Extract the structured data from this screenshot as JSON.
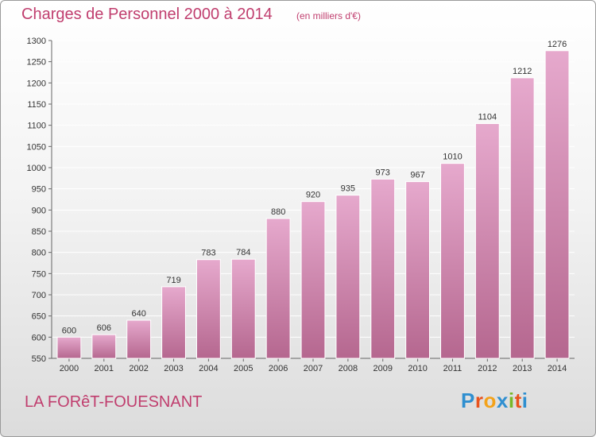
{
  "header": {
    "title": "Charges de Personnel 2000 à 2014",
    "subtitle": "(en milliers d'€)"
  },
  "footer": {
    "commune": "LA FORêT-FOUESNANT",
    "brand": "Proxiti",
    "brand_colors": [
      "#2f8fd0",
      "#e8531e",
      "#f3a21a",
      "#2f8fd0",
      "#78b828",
      "#e8531e",
      "#2f8fd0"
    ]
  },
  "colors": {
    "accent_text": "#c03e6e",
    "bar_top": "#e6a9cd",
    "bar_bottom": "#b5678f",
    "grid": "#ffffff"
  },
  "chart_data": {
    "type": "bar",
    "title": "Charges de Personnel 2000 à 2014",
    "subtitle": "(en milliers d'€)",
    "categories": [
      "2000",
      "2001",
      "2002",
      "2003",
      "2004",
      "2005",
      "2006",
      "2007",
      "2008",
      "2009",
      "2010",
      "2011",
      "2012",
      "2013",
      "2014"
    ],
    "values": [
      600,
      606,
      640,
      719,
      783,
      784,
      880,
      920,
      935,
      973,
      967,
      1010,
      1104,
      1212,
      1276
    ],
    "ylim": [
      550,
      1300
    ],
    "yticks": [
      550,
      600,
      650,
      700,
      750,
      800,
      850,
      900,
      950,
      1000,
      1050,
      1100,
      1150,
      1200,
      1250,
      1300
    ],
    "grid": true,
    "legend": "none"
  }
}
